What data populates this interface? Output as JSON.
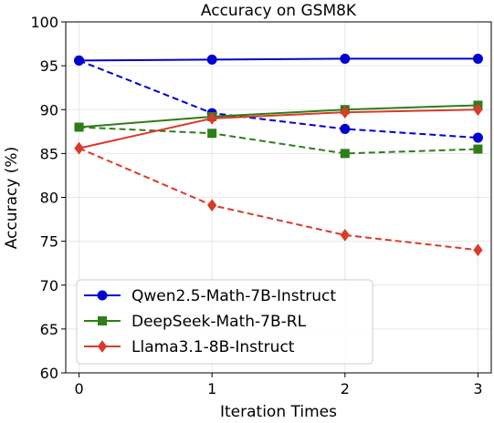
{
  "chart_data": {
    "type": "line",
    "title": "Accuracy on GSM8K",
    "xlabel": "Iteration Times",
    "ylabel": "Accuracy (%)",
    "x": [
      0,
      1,
      2,
      3
    ],
    "x_ticks": [
      "0",
      "1",
      "2",
      "3"
    ],
    "xlim": [
      -0.1,
      3.1
    ],
    "ylim": [
      60,
      100
    ],
    "y_ticks": [
      "60",
      "65",
      "70",
      "75",
      "80",
      "85",
      "90",
      "95",
      "100"
    ],
    "grid": true,
    "legend_position": "lower-left",
    "series": [
      {
        "name": "Qwen2.5-Math-7B-Instruct",
        "color": "#0000d0",
        "marker": "circle",
        "solid_values": [
          95.6,
          95.7,
          95.8,
          95.8
        ],
        "dashed_values": [
          95.6,
          89.6,
          87.8,
          86.8
        ]
      },
      {
        "name": "DeepSeek-Math-7B-RL",
        "color": "#2e7d1a",
        "marker": "square",
        "solid_values": [
          88.0,
          89.2,
          90.0,
          90.5
        ],
        "dashed_values": [
          88.0,
          87.3,
          85.0,
          85.5
        ]
      },
      {
        "name": "Llama3.1-8B-Instruct",
        "color": "#d93a2b",
        "marker": "diamond",
        "solid_values": [
          85.6,
          89.0,
          89.7,
          90.0
        ],
        "dashed_values": [
          85.6,
          79.1,
          75.7,
          74.0
        ]
      }
    ]
  }
}
